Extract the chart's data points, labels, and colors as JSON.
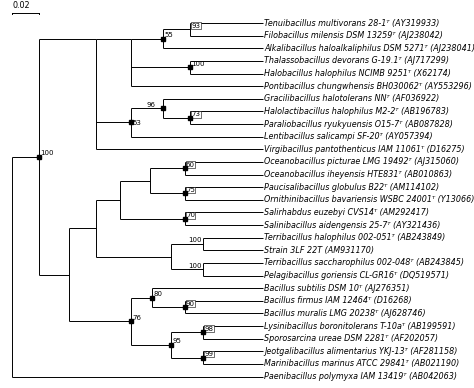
{
  "taxa": [
    "Tenuibacillus multivorans 28-1ᵀ (AY319933)",
    "Filobacillus milensis DSM 13259ᵀ (AJ238042)",
    "Alkalibacillus haloalkaliphilus DSM 5271ᵀ (AJ238041)",
    "Thalassobacillus devorans G-19.1ᵀ (AJ717299)",
    "Halobacillus halophilus NCIMB 9251ᵀ (X62174)",
    "Pontibacillus chungwhensis BH030062ᵀ (AY553296)",
    "Gracilibacillus halotolerans NNᵀ (AF036922)",
    "Halolactibacillus halophilus M2-2ᵀ (AB196783)",
    "Paraliobacillus ryukyuensis O15-7ᵀ (AB087828)",
    "Lentibacillus salicampi SF-20ᵀ (AY057394)",
    "Virgibacillus pantothenticus IAM 11061ᵀ (D16275)",
    "Oceanobacillus picturae LMG 19492ᵀ (AJ315060)",
    "Oceanobacillus iheyensis HTE831ᵀ (AB010863)",
    "Paucisalibacillus globulus B22ᵀ (AM114102)",
    "Ornithinibacillus bavariensis WSBC 24001ᵀ (Y13066)",
    "Salirhabdus euzebyi CVS14ᵀ (AM292417)",
    "Salinibacillus aidengensis 25-7ᵀ (AY321436)",
    "Terribacillus halophilus 002-051ᵀ (AB243849)",
    "Strain 3LF 22T (AM931170)",
    "Terribacillus saccharophilus 002-048ᵀ (AB243845)",
    "Pelagibacillus goriensis CL-GR16ᵀ (DQ519571)",
    "Bacillus subtilis DSM 10ᵀ (AJ276351)",
    "Bacillus firmus IAM 12464ᵀ (D16268)",
    "Bacillus muralis LMG 20238ᵀ (AJ628746)",
    "Lysinibacillus boronitolerans T-10aᵀ (AB199591)",
    "Sporosarcina ureae DSM 2281ᵀ (AF202057)",
    "Jeotgalibacillus alimentarius YKJ-13ᵀ (AF281158)",
    "Marinibacillus marinus ATCC 29841ᵀ (AB021190)",
    "Paenibacillus polymyxa IAM 13419ᵀ (AB042063)"
  ],
  "scale_bar_label": "0.02",
  "bg_color": "#ffffff",
  "line_color": "#000000",
  "text_color": "#000000",
  "font_size": 5.8
}
